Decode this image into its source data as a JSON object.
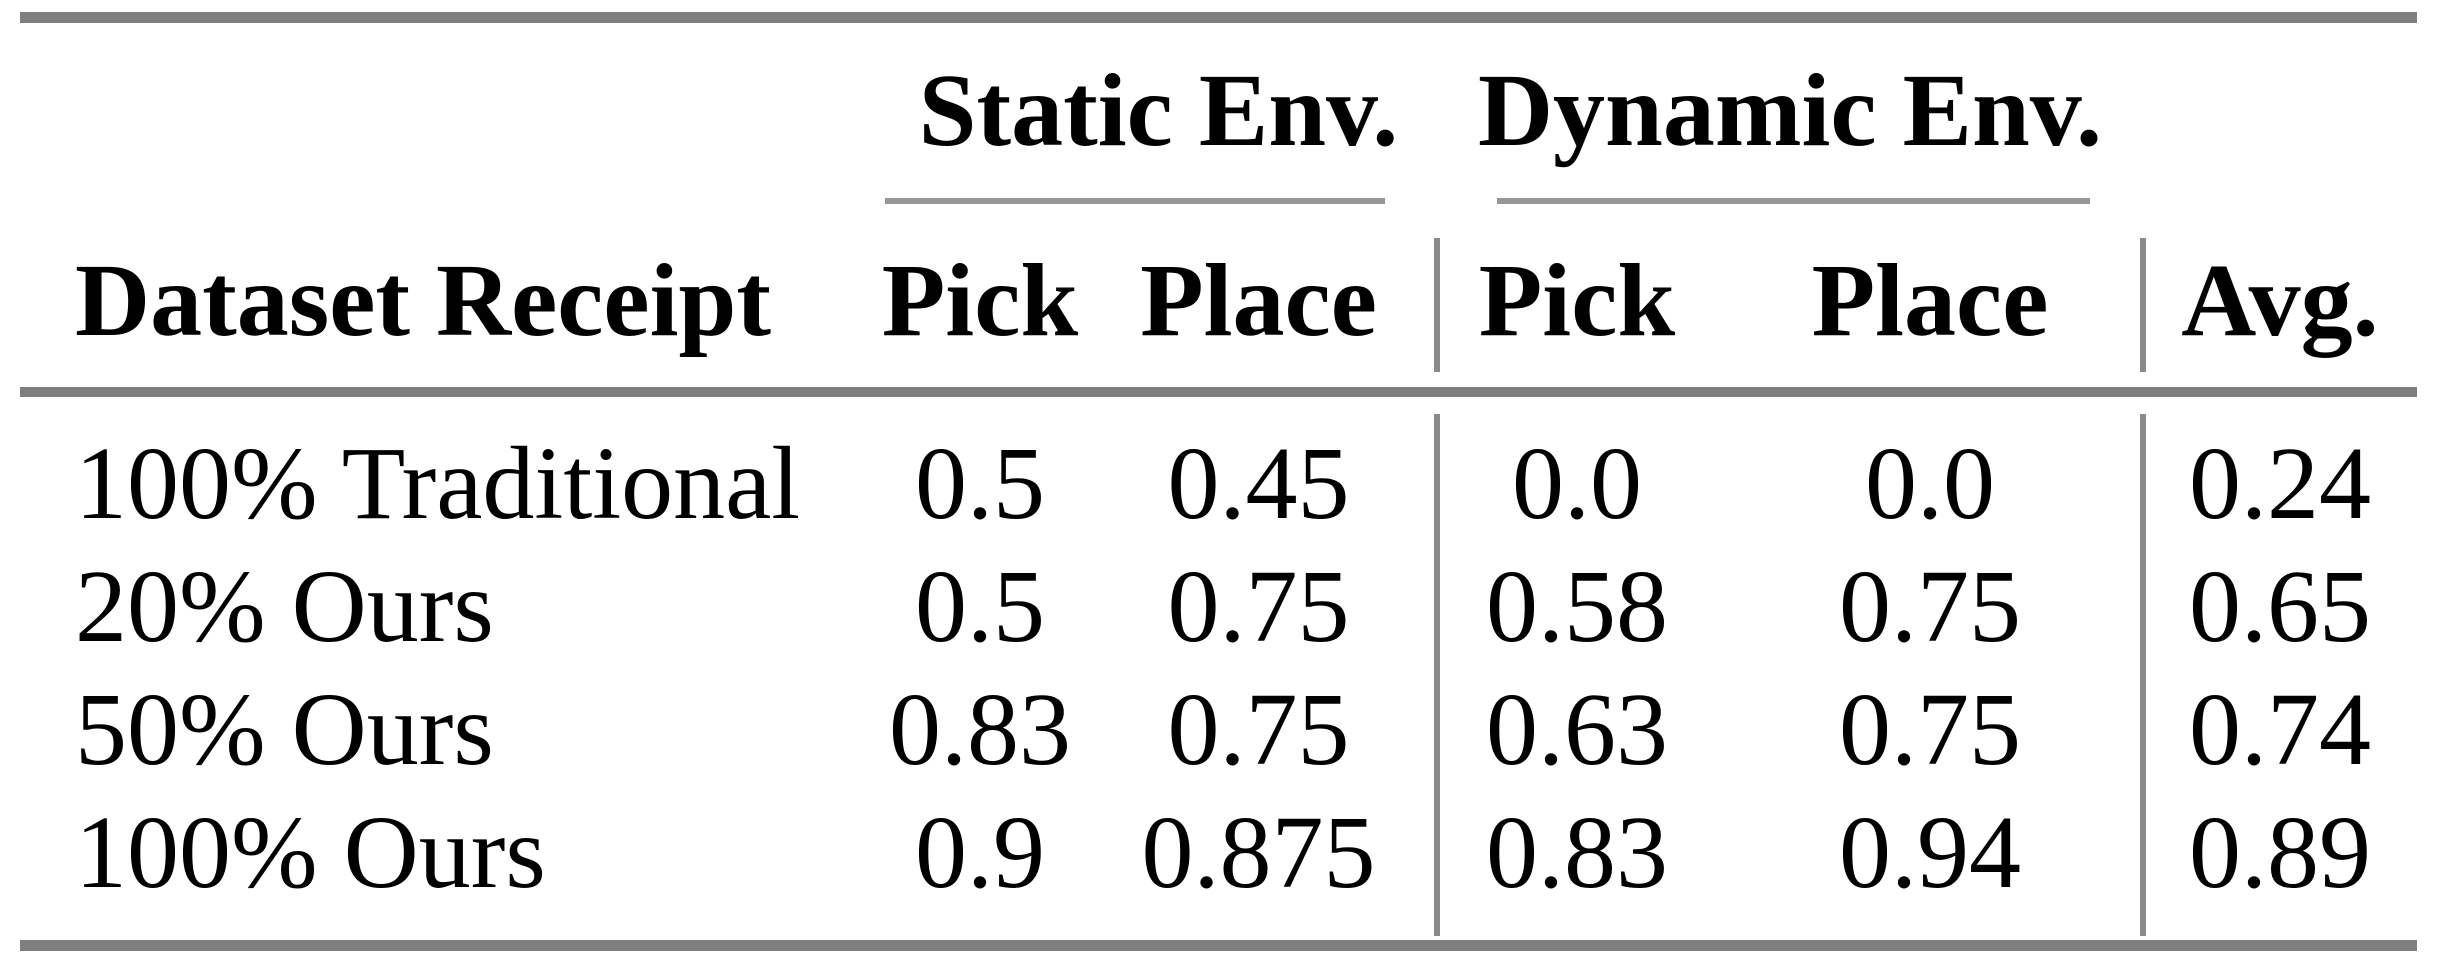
{
  "colors": {
    "background": "#ffffff",
    "text": "#000000",
    "rule_heavy": "#7f7f7f",
    "rule_light": "#969696",
    "rule_vertical": "#8a8a8a"
  },
  "table": {
    "stub_header": "Dataset Receipt",
    "groups": [
      {
        "label": "Static Env.",
        "columns": [
          "Pick",
          "Place"
        ]
      },
      {
        "label": "Dynamic Env.",
        "columns": [
          "Pick",
          "Place"
        ]
      }
    ],
    "col_headers": [
      "Pick",
      "Place",
      "Pick",
      "Place",
      "Avg."
    ],
    "rows": [
      {
        "label": "100% Traditional",
        "values": [
          "0.5",
          "0.45",
          "0.0",
          "0.0",
          "0.24"
        ]
      },
      {
        "label": "20% Ours",
        "values": [
          "0.5",
          "0.75",
          "0.58",
          "0.75",
          "0.65"
        ]
      },
      {
        "label": "50% Ours",
        "values": [
          "0.83",
          "0.75",
          "0.63",
          "0.75",
          "0.74"
        ]
      },
      {
        "label": "100% Ours",
        "values": [
          "0.9",
          "0.875",
          "0.83",
          "0.94",
          "0.89"
        ]
      }
    ]
  }
}
